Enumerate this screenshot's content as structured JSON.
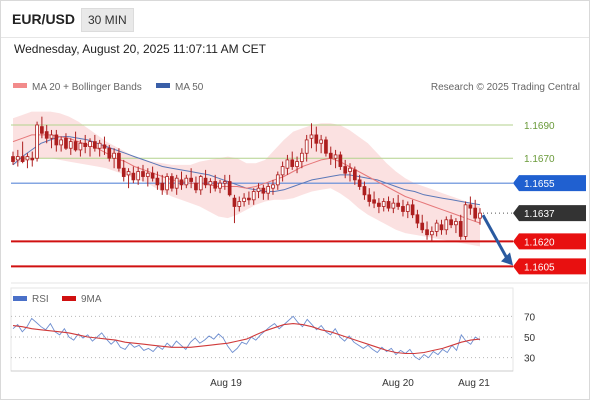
{
  "header": {
    "symbol": "EUR/USD",
    "timeframe": "30 MIN"
  },
  "datetime": "Wednesday, August 20, 2025 11:07:11 AM CET",
  "legend": {
    "bb": "MA 20 + Bollinger Bands",
    "ma50": "MA 50",
    "source": "Research © 2025 Trading Central"
  },
  "rsi_legend": {
    "rsi": "RSI",
    "ma": "9MA"
  },
  "colors": {
    "candle": "#ad1f1f",
    "bb_band": "#fadcdc",
    "ma20": "#e6787a",
    "ma50": "#5b78b8",
    "resistance": "#b3d28d",
    "pivot_line": "#5b88d8",
    "support": "#d01010",
    "pivot_label": "#2060d0",
    "last_label": "#333333",
    "support_label": "#e81010",
    "arrow": "#2a5aa0",
    "rsi": "#6f8fd0",
    "rsi_ma": "#d03a3a"
  },
  "chart_data": [
    {
      "type": "candlestick",
      "symbol": "EUR/USD",
      "timeframe": "30 MIN",
      "x_labels": [
        "Aug 19",
        "Aug 20",
        "Aug 21"
      ],
      "ylim": [
        1.1595,
        1.1705
      ],
      "ohlc_points": [
        [
          1.1671,
          1.1674,
          1.1666,
          1.1668
        ],
        [
          1.1669,
          1.1675,
          1.1665,
          1.1671
        ],
        [
          1.1671,
          1.168,
          1.1667,
          1.1668
        ],
        [
          1.1669,
          1.1673,
          1.1664,
          1.1671
        ],
        [
          1.167,
          1.1674,
          1.1665,
          1.1669
        ],
        [
          1.167,
          1.1692,
          1.1668,
          1.169
        ],
        [
          1.1689,
          1.1695,
          1.1682,
          1.1685
        ],
        [
          1.1686,
          1.169,
          1.1679,
          1.1682
        ],
        [
          1.1682,
          1.1687,
          1.1676,
          1.1684
        ],
        [
          1.1684,
          1.1687,
          1.1674,
          1.1678
        ],
        [
          1.1678,
          1.1683,
          1.1674,
          1.1681
        ],
        [
          1.1682,
          1.1685,
          1.1675,
          1.1676
        ],
        [
          1.1676,
          1.1682,
          1.1672,
          1.168
        ],
        [
          1.168,
          1.1686,
          1.1674,
          1.1675
        ],
        [
          1.1675,
          1.1681,
          1.1671,
          1.1679
        ],
        [
          1.1679,
          1.1684,
          1.1673,
          1.1677
        ],
        [
          1.1677,
          1.1682,
          1.1671,
          1.168
        ],
        [
          1.168,
          1.1684,
          1.1674,
          1.1676
        ],
        [
          1.1676,
          1.1681,
          1.1671,
          1.1679
        ],
        [
          1.1678,
          1.1683,
          1.1672,
          1.1676
        ],
        [
          1.1676,
          1.1678,
          1.1668,
          1.167
        ],
        [
          1.167,
          1.1676,
          1.1664,
          1.1673
        ],
        [
          1.1673,
          1.1676,
          1.1662,
          1.1664
        ],
        [
          1.1664,
          1.1669,
          1.1656,
          1.1659
        ],
        [
          1.166,
          1.1664,
          1.1652,
          1.1662
        ],
        [
          1.1661,
          1.1665,
          1.1655,
          1.1657
        ],
        [
          1.1657,
          1.1665,
          1.1654,
          1.1662
        ],
        [
          1.1662,
          1.1666,
          1.1656,
          1.1659
        ],
        [
          1.1659,
          1.1664,
          1.1653,
          1.1661
        ],
        [
          1.1661,
          1.1665,
          1.1656,
          1.1658
        ],
        [
          1.1658,
          1.1662,
          1.1651,
          1.1654
        ],
        [
          1.1655,
          1.166,
          1.1648,
          1.1651
        ],
        [
          1.1651,
          1.1661,
          1.1648,
          1.1659
        ],
        [
          1.1659,
          1.1661,
          1.165,
          1.1652
        ],
        [
          1.1652,
          1.166,
          1.1648,
          1.1658
        ],
        [
          1.1657,
          1.1662,
          1.1651,
          1.1654
        ],
        [
          1.1654,
          1.166,
          1.1652,
          1.1658
        ],
        [
          1.1658,
          1.1664,
          1.1652,
          1.1656
        ],
        [
          1.1655,
          1.1659,
          1.1649,
          1.1651
        ],
        [
          1.1651,
          1.166,
          1.1648,
          1.1659
        ],
        [
          1.1658,
          1.1663,
          1.1652,
          1.1654
        ],
        [
          1.1654,
          1.1658,
          1.1649,
          1.1656
        ],
        [
          1.1656,
          1.166,
          1.165,
          1.1652
        ],
        [
          1.1652,
          1.1657,
          1.1649,
          1.1655
        ],
        [
          1.1655,
          1.166,
          1.1651,
          1.1656
        ],
        [
          1.1656,
          1.166,
          1.1647,
          1.1648
        ],
        [
          1.1646,
          1.1648,
          1.1631,
          1.1641
        ],
        [
          1.1641,
          1.1647,
          1.1638,
          1.1644
        ],
        [
          1.1644,
          1.1649,
          1.1641,
          1.1646
        ],
        [
          1.1646,
          1.165,
          1.1642,
          1.1645
        ],
        [
          1.1645,
          1.1652,
          1.1642,
          1.165
        ],
        [
          1.165,
          1.1655,
          1.1646,
          1.1652
        ],
        [
          1.1652,
          1.1654,
          1.1645,
          1.1649
        ],
        [
          1.1649,
          1.1655,
          1.1645,
          1.1653
        ],
        [
          1.1652,
          1.1657,
          1.1648,
          1.1654
        ],
        [
          1.1654,
          1.1662,
          1.1651,
          1.166
        ],
        [
          1.166,
          1.1668,
          1.1656,
          1.1665
        ],
        [
          1.1664,
          1.1672,
          1.166,
          1.1669
        ],
        [
          1.1669,
          1.1674,
          1.1663,
          1.1665
        ],
        [
          1.1665,
          1.1671,
          1.1661,
          1.1668
        ],
        [
          1.1668,
          1.1676,
          1.1664,
          1.1673
        ],
        [
          1.1673,
          1.1684,
          1.1668,
          1.1681
        ],
        [
          1.1682,
          1.1691,
          1.1676,
          1.1684
        ],
        [
          1.1684,
          1.1689,
          1.1674,
          1.1679
        ],
        [
          1.1679,
          1.1684,
          1.1673,
          1.1681
        ],
        [
          1.1681,
          1.1683,
          1.1671,
          1.1673
        ],
        [
          1.1673,
          1.1677,
          1.1666,
          1.167
        ],
        [
          1.167,
          1.1675,
          1.1664,
          1.1672
        ],
        [
          1.1672,
          1.1674,
          1.1663,
          1.1665
        ],
        [
          1.1665,
          1.1669,
          1.1658,
          1.1661
        ],
        [
          1.1662,
          1.1667,
          1.1656,
          1.1664
        ],
        [
          1.1663,
          1.1665,
          1.1654,
          1.1657
        ],
        [
          1.1657,
          1.166,
          1.1651,
          1.1653
        ],
        [
          1.1653,
          1.1656,
          1.1645,
          1.1648
        ],
        [
          1.1648,
          1.1652,
          1.1641,
          1.1644
        ],
        [
          1.1645,
          1.165,
          1.164,
          1.1643
        ],
        [
          1.1643,
          1.1646,
          1.1637,
          1.1641
        ],
        [
          1.1641,
          1.1646,
          1.1638,
          1.1644
        ],
        [
          1.1644,
          1.1647,
          1.1638,
          1.164
        ],
        [
          1.164,
          1.1646,
          1.1637,
          1.1643
        ],
        [
          1.1643,
          1.1648,
          1.1639,
          1.1641
        ],
        [
          1.1641,
          1.1645,
          1.1635,
          1.1638
        ],
        [
          1.1638,
          1.1644,
          1.1634,
          1.1642
        ],
        [
          1.1642,
          1.1645,
          1.1634,
          1.1636
        ],
        [
          1.1636,
          1.1639,
          1.1628,
          1.1631
        ],
        [
          1.1631,
          1.1636,
          1.1625,
          1.1627
        ],
        [
          1.1627,
          1.1632,
          1.1621,
          1.1624
        ],
        [
          1.1624,
          1.1629,
          1.162,
          1.1626
        ],
        [
          1.1626,
          1.1633,
          1.1623,
          1.1631
        ],
        [
          1.163,
          1.1633,
          1.1624,
          1.1627
        ],
        [
          1.1627,
          1.1635,
          1.1624,
          1.1633
        ],
        [
          1.1633,
          1.1636,
          1.1628,
          1.163
        ],
        [
          1.163,
          1.1634,
          1.1625,
          1.1632
        ],
        [
          1.1632,
          1.1636,
          1.1621,
          1.1623
        ],
        [
          1.1623,
          1.1644,
          1.1621,
          1.1642
        ],
        [
          1.1642,
          1.1647,
          1.1636,
          1.164
        ],
        [
          1.164,
          1.1645,
          1.1632,
          1.1634
        ],
        [
          1.1634,
          1.164,
          1.163,
          1.1637
        ]
      ],
      "series": [
        {
          "name": "MA 20",
          "values": [
            1.168,
            1.1682,
            1.1684,
            1.1684,
            1.1684,
            1.1683,
            1.1682,
            1.168,
            1.1678,
            1.1676,
            1.1673,
            1.167,
            1.1668,
            1.1665,
            1.1663,
            1.1661,
            1.1659,
            1.1657,
            1.1656,
            1.1655,
            1.1655,
            1.1654,
            1.1653,
            1.1653,
            1.1653,
            1.1652,
            1.1653,
            1.1655,
            1.1657,
            1.1659,
            1.1662,
            1.1665,
            1.1667,
            1.1669,
            1.167,
            1.1668,
            1.1665,
            1.1662,
            1.1659,
            1.1656,
            1.1653,
            1.165,
            1.1647,
            1.1645,
            1.1643,
            1.1641,
            1.1639,
            1.1637,
            1.1635,
            1.1633,
            1.1631
          ]
        },
        {
          "name": "Bollinger Upper",
          "values": [
            1.1694,
            1.1696,
            1.1698,
            1.1698,
            1.1698,
            1.1697,
            1.1695,
            1.1692,
            1.1688,
            1.1684,
            1.168,
            1.1677,
            1.1674,
            1.1671,
            1.1669,
            1.1668,
            1.1667,
            1.1666,
            1.1666,
            1.1666,
            1.1668,
            1.1669,
            1.167,
            1.1671,
            1.167,
            1.1667,
            1.1667,
            1.1669,
            1.1675,
            1.1681,
            1.1686,
            1.1688,
            1.169,
            1.1691,
            1.1691,
            1.169,
            1.1687,
            1.1683,
            1.1679,
            1.1673,
            1.1667,
            1.1662,
            1.1658,
            1.1655,
            1.1653,
            1.1651,
            1.1649,
            1.1647,
            1.1645,
            1.1643,
            1.1641
          ]
        },
        {
          "name": "Bollinger Lower",
          "values": [
            1.1666,
            1.1668,
            1.167,
            1.167,
            1.167,
            1.1669,
            1.1668,
            1.1667,
            1.1666,
            1.1665,
            1.1664,
            1.1662,
            1.166,
            1.1658,
            1.1656,
            1.1653,
            1.165,
            1.1647,
            1.1645,
            1.1643,
            1.1641,
            1.1638,
            1.1635,
            1.1634,
            1.1636,
            1.1639,
            1.1642,
            1.1644,
            1.1645,
            1.1645,
            1.1646,
            1.1648,
            1.165,
            1.1651,
            1.1652,
            1.1649,
            1.1645,
            1.164,
            1.1636,
            1.1633,
            1.163,
            1.1627,
            1.1625,
            1.1624,
            1.1623,
            1.1622,
            1.1621,
            1.162,
            1.1619,
            1.1618,
            1.1617
          ]
        },
        {
          "name": "MA 50",
          "values": [
            1.1666,
            1.1671,
            1.1675,
            1.1679,
            1.1681,
            1.1683,
            1.1683,
            1.1682,
            1.1681,
            1.1679,
            1.1677,
            1.1675,
            1.1673,
            1.1671,
            1.1669,
            1.1667,
            1.1665,
            1.1664,
            1.1663,
            1.1662,
            1.1661,
            1.166,
            1.1658,
            1.1656,
            1.1654,
            1.1652,
            1.1651,
            1.165,
            1.165,
            1.1651,
            1.1653,
            1.1655,
            1.1657,
            1.1658,
            1.1659,
            1.166,
            1.166,
            1.1659,
            1.1658,
            1.1657,
            1.1655,
            1.1653,
            1.1651,
            1.165,
            1.1648,
            1.1647,
            1.1646,
            1.1645,
            1.1644,
            1.1643,
            1.1642
          ]
        }
      ],
      "levels": [
        {
          "value": 1.169,
          "label": "1.1690",
          "kind": "resistance"
        },
        {
          "value": 1.167,
          "label": "1.1670",
          "kind": "resistance"
        },
        {
          "value": 1.1655,
          "label": "1.1655",
          "kind": "pivot"
        },
        {
          "value": 1.1637,
          "label": "1.1637",
          "kind": "last"
        },
        {
          "value": 1.162,
          "label": "1.1620",
          "kind": "support"
        },
        {
          "value": 1.1605,
          "label": "1.1605",
          "kind": "support"
        }
      ],
      "forecast": {
        "direction": "down",
        "target": 1.1605
      }
    },
    {
      "type": "line",
      "name": "RSI",
      "ylim": [
        20,
        80
      ],
      "y_ticks": [
        {
          "value": 70,
          "label": "70"
        },
        {
          "value": 50,
          "label": "50"
        },
        {
          "value": 30,
          "label": "30"
        }
      ],
      "series": [
        {
          "name": "RSI",
          "values": [
            58,
            62,
            55,
            60,
            68,
            64,
            60,
            57,
            63,
            55,
            52,
            58,
            50,
            47,
            53,
            49,
            52,
            46,
            50,
            54,
            48,
            43,
            47,
            40,
            38,
            44,
            40,
            42,
            37,
            39,
            36,
            41,
            38,
            44,
            40,
            46,
            42,
            38,
            45,
            49,
            44,
            47,
            51,
            48,
            53,
            49,
            41,
            35,
            39,
            45,
            43,
            50,
            47,
            52,
            56,
            60,
            63,
            58,
            62,
            66,
            70,
            64,
            60,
            67,
            62,
            57,
            61,
            55,
            52,
            58,
            50,
            46,
            51,
            45,
            42,
            39,
            42,
            38,
            35,
            40,
            36,
            39,
            33,
            37,
            34,
            38,
            31,
            28,
            33,
            30,
            36,
            33,
            38,
            35,
            42,
            37,
            52,
            46,
            43,
            50,
            47
          ]
        },
        {
          "name": "9MA",
          "values": [
            61,
            60,
            58,
            57,
            56,
            55,
            54,
            52,
            50,
            49,
            48,
            47,
            45,
            44,
            43,
            42,
            41,
            40,
            40,
            40,
            41,
            42,
            43,
            44,
            46,
            48,
            52,
            56,
            59,
            62,
            63,
            62,
            60,
            57,
            55,
            52,
            49,
            46,
            43,
            40,
            37,
            35,
            34,
            34,
            35,
            37,
            39,
            42,
            45,
            47,
            48
          ]
        }
      ]
    }
  ]
}
